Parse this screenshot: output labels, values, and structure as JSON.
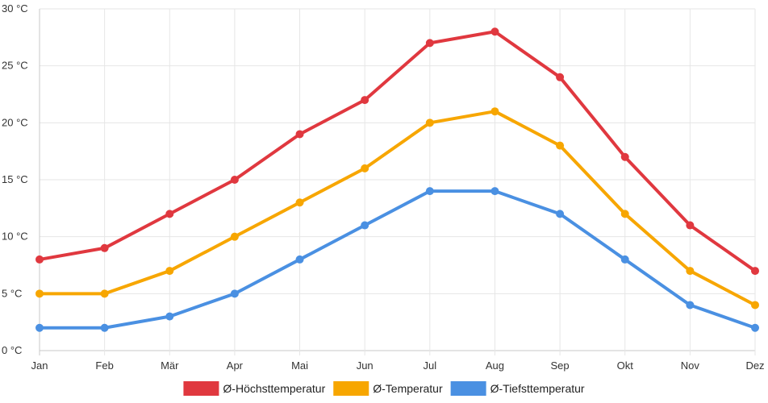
{
  "chart_data": {
    "type": "line",
    "title": "",
    "xlabel": "",
    "ylabel": "",
    "ylim": [
      0,
      30
    ],
    "y_ticks": [
      0,
      5,
      10,
      15,
      20,
      25,
      30
    ],
    "y_tick_labels": [
      "0 °C",
      "5 °C",
      "10 °C",
      "15 °C",
      "20 °C",
      "25 °C",
      "30 °C"
    ],
    "categories": [
      "Jan",
      "Feb",
      "Mär",
      "Apr",
      "Mai",
      "Jun",
      "Jul",
      "Aug",
      "Sep",
      "Okt",
      "Nov",
      "Dez"
    ],
    "grid": true,
    "legend_position": "bottom",
    "series": [
      {
        "name": "Ø-Höchsttemperatur",
        "color": "#e0383f",
        "values": [
          8,
          9,
          12,
          15,
          19,
          22,
          27,
          28,
          24,
          17,
          11,
          7
        ]
      },
      {
        "name": "Ø-Temperatur",
        "color": "#f7a600",
        "values": [
          5,
          5,
          7,
          10,
          13,
          16,
          20,
          21,
          18,
          12,
          7,
          4
        ]
      },
      {
        "name": "Ø-Tiefsttemperatur",
        "color": "#4a90e2",
        "values": [
          2,
          2,
          3,
          5,
          8,
          11,
          14,
          14,
          12,
          8,
          4,
          2
        ]
      }
    ]
  }
}
